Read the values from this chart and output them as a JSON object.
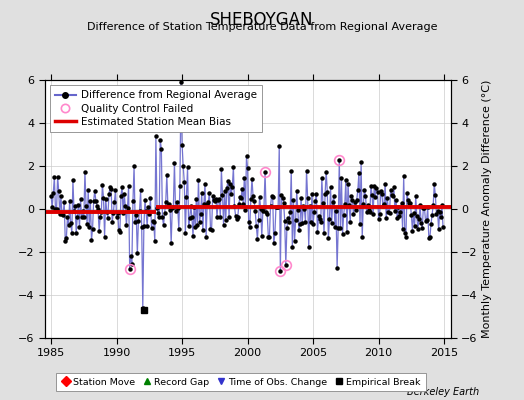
{
  "title": "SHEBOYGAN",
  "subtitle": "Difference of Station Temperature Data from Regional Average",
  "ylabel": "Monthly Temperature Anomaly Difference (°C)",
  "xlim": [
    1984.5,
    2015.5
  ],
  "ylim": [
    -6,
    6
  ],
  "yticks": [
    -6,
    -4,
    -2,
    0,
    2,
    4,
    6
  ],
  "xticks": [
    1985,
    1990,
    1995,
    2000,
    2005,
    2010,
    2015
  ],
  "bias_line_y1": -0.15,
  "bias_line_x1_start": 1984.5,
  "bias_line_x1_end": 1993.0,
  "bias_line_y2": 0.1,
  "bias_line_x2_start": 1993.0,
  "bias_line_x2_end": 2015.5,
  "background_color": "#e0e0e0",
  "plot_bg_color": "#ffffff",
  "line_color": "#6666cc",
  "marker_color": "#000000",
  "bias_color": "#dd0000",
  "qc_color": "#ff88cc",
  "empirical_break_x": 1992.1,
  "empirical_break_y": -4.7,
  "watermark": "Berkeley Earth",
  "seed": 42,
  "num_points": 360,
  "title_fontsize": 12,
  "subtitle_fontsize": 8,
  "tick_fontsize": 8,
  "legend_fontsize": 7.5,
  "ylabel_fontsize": 8,
  "watermark_fontsize": 7
}
